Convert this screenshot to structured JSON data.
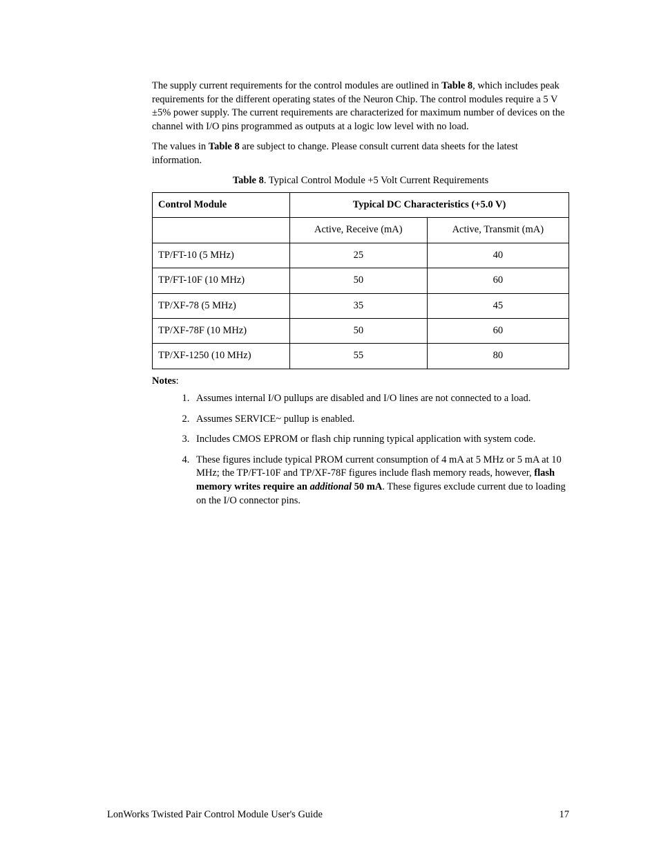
{
  "paragraphs": {
    "p1_pre": "The supply current requirements for the control modules are outlined in ",
    "p1_bold": "Table 8",
    "p1_post": ", which includes peak requirements for the different operating states of the Neuron Chip.  The control modules require a 5 V ±5% power supply.  The current requirements are characterized for maximum number of devices on the channel with I/O pins programmed as outputs at a logic low level with no load.",
    "p2_pre": "The values in ",
    "p2_bold": "Table 8",
    "p2_post": " are subject to change.  Please consult current data sheets for the latest information."
  },
  "table": {
    "caption_bold": "Table 8",
    "caption_rest": ". Typical Control Module +5 Volt Current Requirements",
    "header_module": "Control Module",
    "header_characteristics": "Typical  DC Characteristics  (+5.0 V)",
    "sub_receive": "Active, Receive  (mA)",
    "sub_transmit": "Active, Transmit  (mA)",
    "rows": [
      {
        "module": "TP/FT-10 (5 MHz)",
        "receive": "25",
        "transmit": "40"
      },
      {
        "module": "TP/FT-10F (10 MHz)",
        "receive": "50",
        "transmit": "60"
      },
      {
        "module": "TP/XF-78 (5 MHz)",
        "receive": "35",
        "transmit": "45"
      },
      {
        "module": "TP/XF-78F (10 MHz)",
        "receive": "50",
        "transmit": "60"
      },
      {
        "module": "TP/XF-1250 (10 MHz)",
        "receive": "55",
        "transmit": "80"
      }
    ]
  },
  "notes": {
    "label_bold": "Notes",
    "label_colon": ":",
    "items": {
      "n1": "Assumes internal I/O pullups are disabled and I/O lines are not connected to a load.",
      "n2": "Assumes SERVICE~ pullup is enabled.",
      "n3": "Includes CMOS EPROM or flash chip running typical application with system code.",
      "n4_pre": "These figures include typical PROM current consumption of 4 mA at 5 MHz or 5 mA at 10 MHz; the TP/FT-10F and TP/XF-78F figures include flash memory reads, however, ",
      "n4_bold": "flash memory writes require an ",
      "n4_bolditalic": "additional",
      "n4_bold2": " 50 mA",
      "n4_post": ".   These figures exclude current due to loading on the I/O connector pins."
    }
  },
  "footer": {
    "title": "LonWorks Twisted Pair Control Module User's Guide",
    "page": "17"
  }
}
